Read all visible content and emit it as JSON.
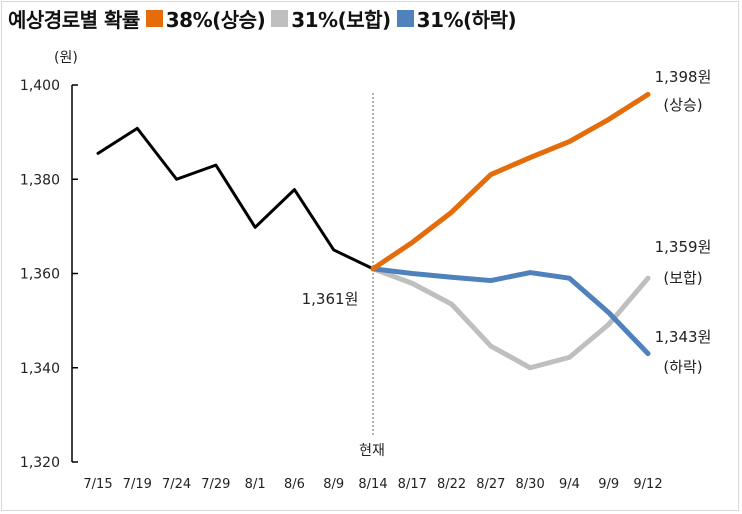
{
  "title": "예상경로별 확률",
  "legend": [
    {
      "label": "38%(상승)",
      "color": "#E46C0A"
    },
    {
      "label": "31%(보합)",
      "color": "#BFBFBF"
    },
    {
      "label": "31%(하락)",
      "color": "#4F81BD"
    }
  ],
  "chart_data": {
    "type": "line",
    "title": "예상경로별 확률",
    "ylabel": "(원)",
    "ylim": [
      1320,
      1400
    ],
    "yticks": [
      "1,320",
      "1,340",
      "1,360",
      "1,380",
      "1,400"
    ],
    "ytick_values": [
      1320,
      1340,
      1360,
      1380,
      1400
    ],
    "grid": false,
    "categories": [
      "7/15",
      "7/19",
      "7/24",
      "7/29",
      "8/1",
      "8/6",
      "8/9",
      "8/14",
      "8/17",
      "8/22",
      "8/27",
      "8/30",
      "9/4",
      "9/9",
      "9/12"
    ],
    "series": [
      {
        "key": "history",
        "color": "#000000",
        "values": [
          1385.5,
          1390.8,
          1380,
          1383,
          1369.8,
          1377.8,
          1365,
          1361,
          null,
          null,
          null,
          null,
          null,
          null,
          null
        ]
      },
      {
        "key": "up",
        "name": "38%(상승)",
        "color": "#E46C0A",
        "values": [
          null,
          null,
          null,
          null,
          null,
          null,
          null,
          1361,
          1366.6,
          1373,
          1381,
          1384.6,
          1388,
          1392.7,
          1398
        ]
      },
      {
        "key": "flat",
        "name": "31%(보합)",
        "color": "#BFBFBF",
        "values": [
          null,
          null,
          null,
          null,
          null,
          null,
          null,
          1361,
          1357.9,
          1353.5,
          1344.6,
          1340,
          1342.2,
          1349.2,
          1359
        ]
      },
      {
        "key": "down",
        "name": "31%(하락)",
        "color": "#4F81BD",
        "values": [
          null,
          null,
          null,
          null,
          null,
          null,
          null,
          1361,
          1360,
          1359.2,
          1358.5,
          1360.2,
          1359,
          1351.7,
          1343
        ]
      }
    ],
    "annotations": {
      "current_label": "현재",
      "current_value": "1,361원",
      "up_value": "1,398원",
      "up_label": "(상승)",
      "flat_value": "1,359원",
      "flat_label": "(보합)",
      "down_value": "1,343원",
      "down_label": "(하락)"
    }
  }
}
